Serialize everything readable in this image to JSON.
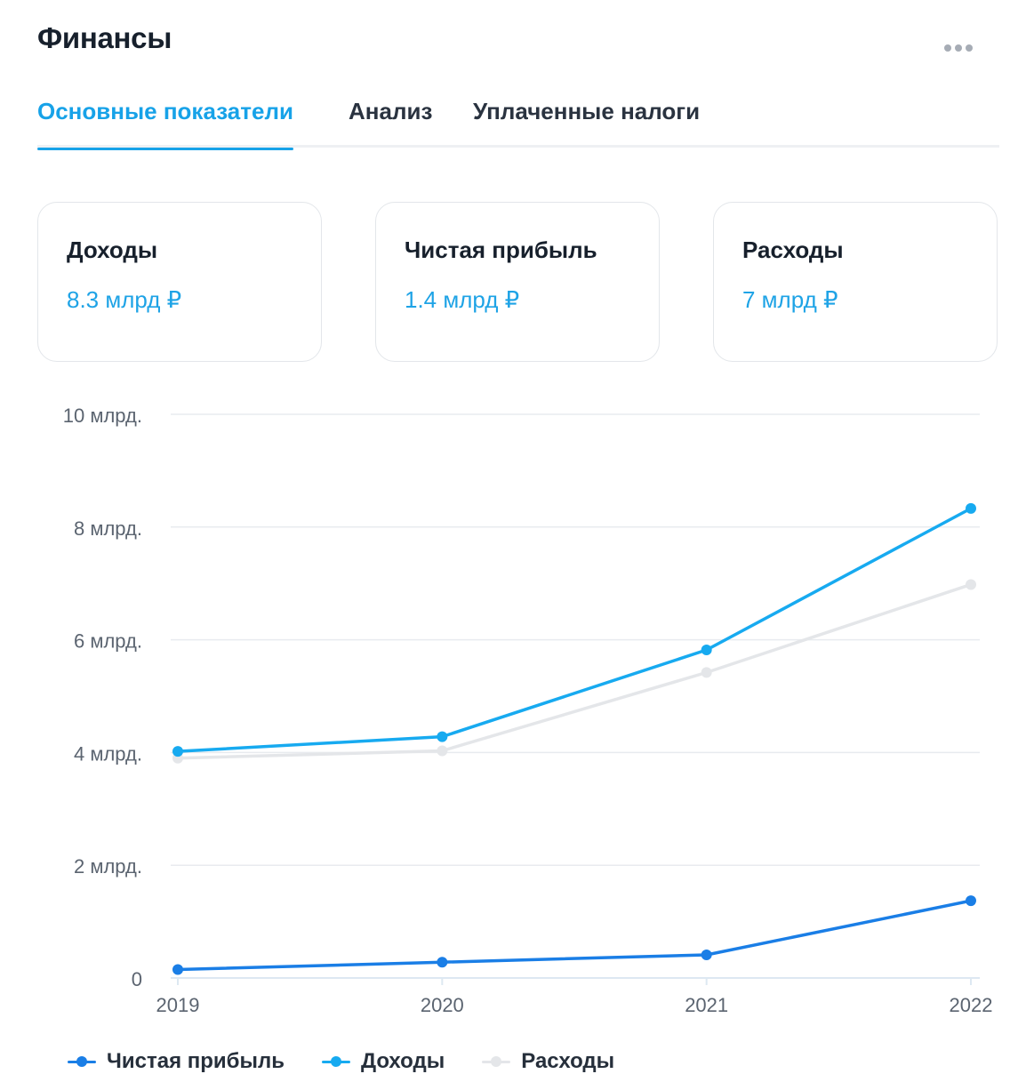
{
  "header": {
    "title": "Финансы",
    "menu_icon": "more-horizontal-icon"
  },
  "tabs": [
    {
      "label": "Основные показатели",
      "active": true
    },
    {
      "label": "Анализ",
      "active": false
    },
    {
      "label": "Уплаченные налоги",
      "active": false
    }
  ],
  "cards": [
    {
      "label": "Доходы",
      "value": "8.3 млрд ₽"
    },
    {
      "label": "Чистая прибыль",
      "value": "1.4 млрд ₽"
    },
    {
      "label": "Расходы",
      "value": "7 млрд ₽"
    }
  ],
  "colors": {
    "accent": "#17a2e8",
    "profit": "#1a7ee6",
    "income": "#17aaf0",
    "expenses": "#e4e6e9",
    "grid": "#e8ebef",
    "axis": "#dde8f2"
  },
  "chart_data": {
    "type": "line",
    "x": [
      "2019",
      "2020",
      "2021",
      "2022"
    ],
    "ylim": [
      0,
      10
    ],
    "yticks": [
      0,
      2,
      4,
      6,
      8,
      10
    ],
    "ytick_labels": [
      "0",
      "2 млрд.",
      "4 млрд.",
      "6 млрд.",
      "8 млрд.",
      "10 млрд."
    ],
    "series": [
      {
        "name": "Чистая прибыль",
        "color": "#1a7ee6",
        "values": [
          0.15,
          0.28,
          0.41,
          1.37
        ]
      },
      {
        "name": "Доходы",
        "color": "#17aaf0",
        "values": [
          4.02,
          4.28,
          5.82,
          8.33
        ]
      },
      {
        "name": "Расходы",
        "color": "#e4e6e9",
        "values": [
          3.9,
          4.03,
          5.42,
          6.98
        ]
      }
    ],
    "legend": "bottom-left",
    "grid": true
  }
}
